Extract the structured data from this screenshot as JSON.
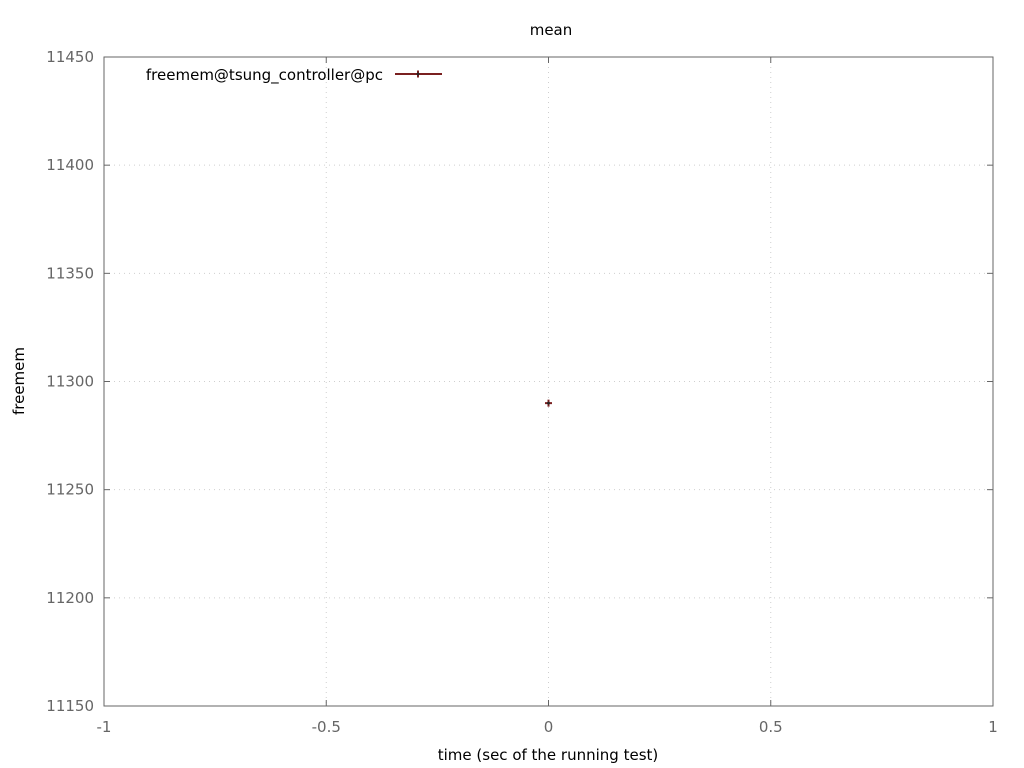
{
  "chart_data": {
    "type": "scatter",
    "title": "mean",
    "xlabel": "time (sec of the running test)",
    "ylabel": "freemem",
    "xlim": [
      -1,
      1
    ],
    "ylim": [
      11150,
      11450
    ],
    "x_ticks": [
      "-1",
      "-0.5",
      "0",
      "0.5",
      "1"
    ],
    "y_ticks": [
      "11150",
      "11200",
      "11250",
      "11300",
      "11350",
      "11400",
      "11450"
    ],
    "grid": true,
    "legend_position": "top-left",
    "series": [
      {
        "name": "freemem@tsung_controller@pc",
        "color": "#7a2020",
        "points": [
          {
            "x": 0,
            "y": 11290
          }
        ]
      }
    ]
  }
}
